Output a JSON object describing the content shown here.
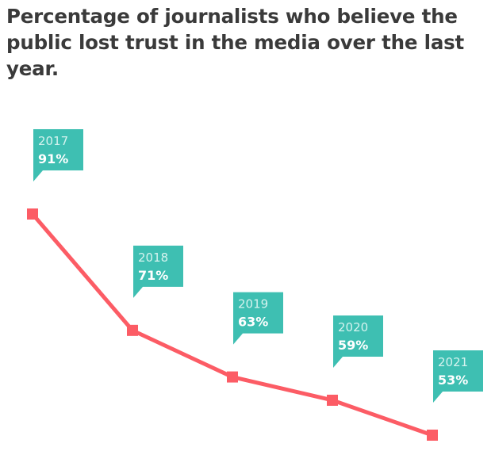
{
  "chart_data": {
    "type": "line",
    "title": "Percentage of journalists who believe the public lost trust in the media over the last year.",
    "categories": [
      "2017",
      "2018",
      "2019",
      "2020",
      "2021"
    ],
    "values": [
      91,
      71,
      63,
      59,
      53
    ],
    "value_labels": [
      "91%",
      "71%",
      "63%",
      "59%",
      "53%"
    ],
    "xlabel": "",
    "ylabel": "",
    "grid": false,
    "colors": {
      "line": "#fc5c65",
      "label_box": "#3ebfb2"
    }
  }
}
